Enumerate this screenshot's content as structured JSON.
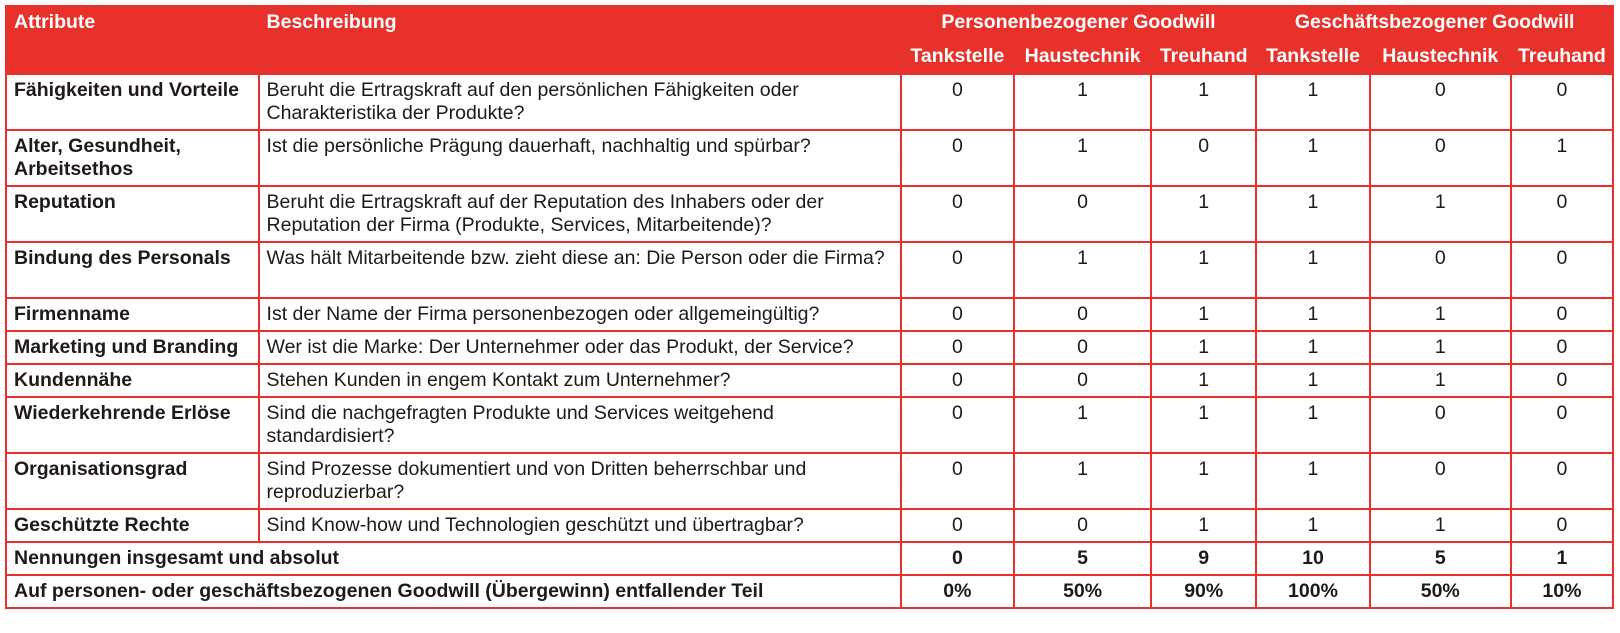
{
  "header": {
    "attribute": "Attribute",
    "description": "Beschreibung",
    "group_personal": "Personenbezogener Goodwill",
    "group_business": "Geschäftsbezogener Goodwill",
    "subcolumns": [
      "Tankstelle",
      "Haustechnik",
      "Treuhand",
      "Tankstelle",
      "Haustechnik",
      "Treuhand"
    ]
  },
  "rows": [
    {
      "attribute": "Fähigkeiten und Vorteile",
      "description": "Beruht die Ertragskraft auf den persönlichen Fähigkeiten oder Charakteristika der Produkte?",
      "values": [
        "0",
        "1",
        "1",
        "1",
        "0",
        "0"
      ]
    },
    {
      "attribute": "Alter, Gesundheit, Arbeitsethos",
      "description": "Ist die persönliche Prägung dauerhaft, nachhaltig und spürbar?",
      "values": [
        "0",
        "1",
        "0",
        "1",
        "0",
        "1"
      ]
    },
    {
      "attribute": "Reputation",
      "description": "Beruht die Ertragskraft auf der Reputation des Inhabers oder der Reputation der Firma (Produkte, Services, Mitarbeitende)?",
      "values": [
        "0",
        "0",
        "1",
        "1",
        "1",
        "0"
      ]
    },
    {
      "attribute": "Bindung des Personals",
      "description": "Was hält Mitarbeitende bzw. zieht diese an: Die Person oder die Firma?",
      "values": [
        "0",
        "1",
        "1",
        "1",
        "0",
        "0"
      ]
    },
    {
      "attribute": "Firmenname",
      "description": "Ist der Name der Firma personenbezogen oder allgemeingültig?",
      "values": [
        "0",
        "0",
        "1",
        "1",
        "1",
        "0"
      ]
    },
    {
      "attribute": "Marketing und Branding",
      "description": "Wer ist die Marke: Der Unternehmer oder das Produkt, der Service?",
      "values": [
        "0",
        "0",
        "1",
        "1",
        "1",
        "0"
      ]
    },
    {
      "attribute": "Kundennähe",
      "description": "Stehen Kunden in engem Kontakt zum Unternehmer?",
      "values": [
        "0",
        "0",
        "1",
        "1",
        "1",
        "0"
      ]
    },
    {
      "attribute": "Wiederkehrende Erlöse",
      "description": "Sind die nachgefragten Produkte und Services weitgehend standardisiert?",
      "values": [
        "0",
        "1",
        "1",
        "1",
        "0",
        "0"
      ]
    },
    {
      "attribute": "Organisationsgrad",
      "description": "Sind Prozesse dokumentiert und von Dritten beherrschbar und reproduzierbar?",
      "values": [
        "0",
        "1",
        "1",
        "1",
        "0",
        "0"
      ]
    },
    {
      "attribute": "Geschützte Rechte",
      "description": "Sind Know-how und Technologien geschützt und übertragbar?",
      "values": [
        "0",
        "0",
        "1",
        "1",
        "1",
        "0"
      ]
    }
  ],
  "totals": [
    {
      "label": "Nennungen insgesamt und absolut",
      "values": [
        "0",
        "5",
        "9",
        "10",
        "5",
        "1"
      ]
    },
    {
      "label": "Auf personen- oder geschäftsbezogenen Goodwill (Übergewinn) entfallender Teil",
      "values": [
        "0%",
        "50%",
        "90%",
        "100%",
        "50%",
        "10%"
      ]
    }
  ],
  "colors": {
    "accent": "#e8312b",
    "header_text": "#ffffff",
    "body_text": "#1f1a17"
  }
}
